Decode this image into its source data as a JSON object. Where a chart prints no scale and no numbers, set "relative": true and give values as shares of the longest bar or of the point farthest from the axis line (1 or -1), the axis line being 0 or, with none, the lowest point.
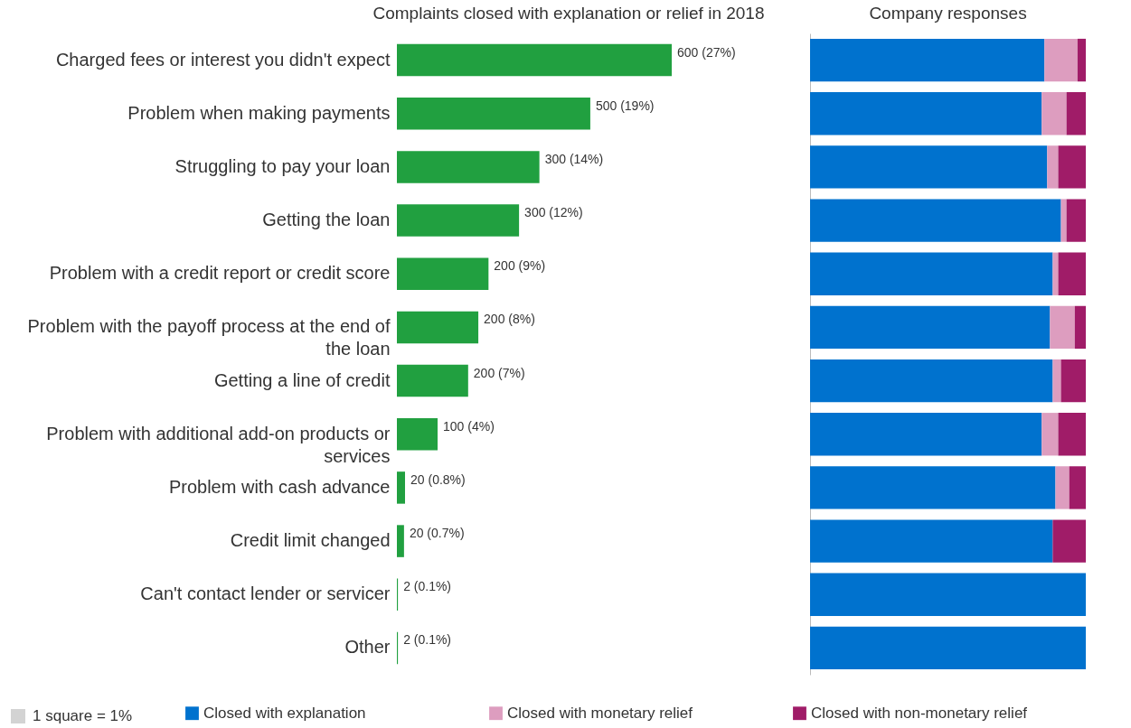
{
  "chart_data": [
    {
      "type": "bar",
      "orientation": "horizontal",
      "title": "Complaints closed with explanation or relief in 2018",
      "categories": [
        "Charged fees or interest you didn't expect",
        "Problem when making payments",
        "Struggling to pay your loan",
        "Getting the loan",
        "Problem with a credit report or credit score",
        "Problem with the payoff process at the end of the loan",
        "Getting a line of credit",
        "Problem with additional add-on products or services",
        "Problem with cash advance",
        "Credit limit changed",
        "Can't contact lender or servicer",
        "Other"
      ],
      "values": [
        27,
        19,
        14,
        12,
        9,
        8,
        7,
        4,
        0.8,
        0.7,
        0.1,
        0.1
      ],
      "value_labels": [
        "600 (27%)",
        "500 (19%)",
        "300 (14%)",
        "300 (12%)",
        "200 (9%)",
        "200 (8%)",
        "200 (7%)",
        "100 (4%)",
        "20 (0.8%)",
        "20 (0.7%)",
        "2 (0.1%)",
        "2 (0.1%)"
      ],
      "color": "#21a040",
      "tick_labels": "y"
    },
    {
      "type": "bar",
      "orientation": "horizontal",
      "stacked": true,
      "title": "Company responses",
      "categories": [
        null,
        null,
        null,
        null,
        null,
        null,
        null,
        null,
        null,
        null,
        null,
        null
      ],
      "series": [
        {
          "name": "Closed with explanation",
          "color": "#0072ce",
          "values": [
            0.85,
            0.84,
            0.86,
            0.91,
            0.88,
            0.87,
            0.88,
            0.84,
            0.89,
            0.88,
            1,
            1
          ]
        },
        {
          "name": "Closed with monetary relief",
          "color": "#dd9dbf",
          "values": [
            0.12,
            0.09,
            0.04,
            0.02,
            0.02,
            0.09,
            0.03,
            0.06,
            0.05,
            0,
            0,
            0
          ]
        },
        {
          "name": "Closed with non-monetary relief",
          "color": "#a01c68",
          "values": [
            0.03,
            0.07,
            0.1,
            0.07,
            0.1,
            0.04,
            0.09,
            0.1,
            0.06,
            0.12,
            0,
            0
          ]
        }
      ],
      "relative": true,
      "tick_labels": false,
      "legend": "bottom",
      "annotations": [
        "1 square = 1%"
      ]
    }
  ]
}
